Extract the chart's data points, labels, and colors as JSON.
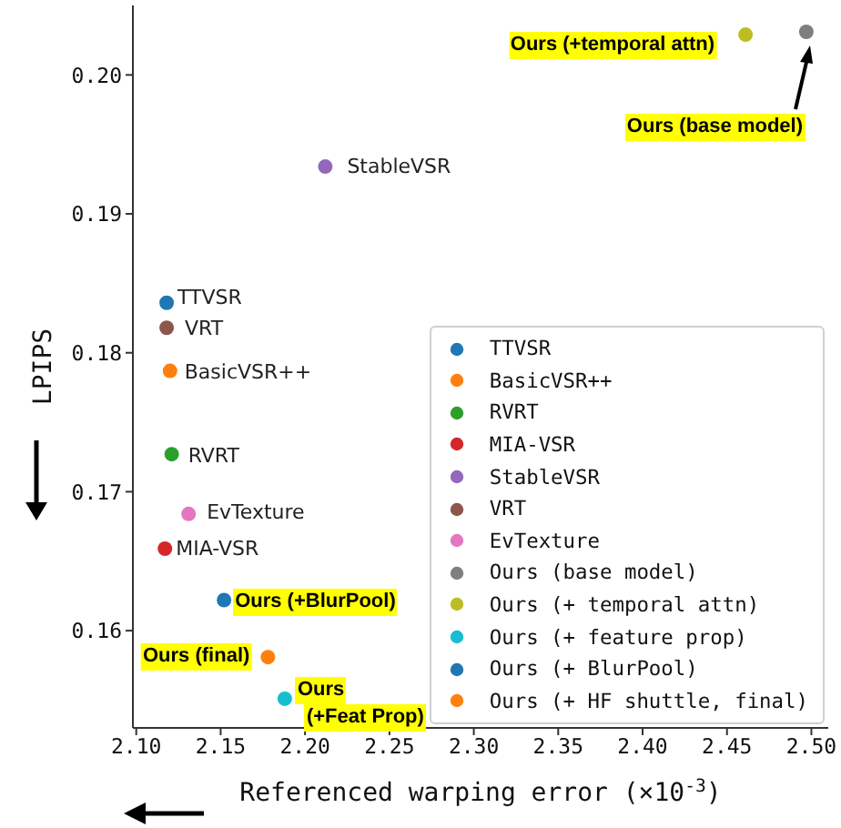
{
  "chart_data": {
    "type": "scatter",
    "xlabel": "Referenced warping error (×10$^{-3}$)",
    "ylabel": "LPIPS",
    "xlim": [
      2.098,
      2.51
    ],
    "ylim": [
      0.153,
      0.205
    ],
    "xticks": [
      {
        "value": 2.1,
        "label": "2.10"
      },
      {
        "value": 2.15,
        "label": "2.15"
      },
      {
        "value": 2.2,
        "label": "2.20"
      },
      {
        "value": 2.25,
        "label": "2.25"
      },
      {
        "value": 2.3,
        "label": "2.30"
      },
      {
        "value": 2.35,
        "label": "2.35"
      },
      {
        "value": 2.4,
        "label": "2.40"
      },
      {
        "value": 2.45,
        "label": "2.45"
      },
      {
        "value": 2.5,
        "label": "2.50"
      }
    ],
    "yticks": [
      {
        "value": 0.16,
        "label": "0.16"
      },
      {
        "value": 0.17,
        "label": "0.17"
      },
      {
        "value": 0.18,
        "label": "0.18"
      },
      {
        "value": 0.19,
        "label": "0.19"
      },
      {
        "value": 0.2,
        "label": "0.20"
      }
    ],
    "marker": "circle",
    "legend": "bottom right",
    "series": [
      {
        "name": "TTVSR",
        "color": "#1f77b4",
        "x": [
          2.118
        ],
        "values": [
          0.1836
        ]
      },
      {
        "name": "BasicVSR++",
        "color": "#ff7f0e",
        "x": [
          2.12
        ],
        "values": [
          0.1787
        ]
      },
      {
        "name": "RVRT",
        "color": "#2ca02c",
        "x": [
          2.121
        ],
        "values": [
          0.1727
        ]
      },
      {
        "name": "MIA-VSR",
        "color": "#d62728",
        "x": [
          2.117
        ],
        "values": [
          0.1659
        ]
      },
      {
        "name": "StableVSR",
        "color": "#9467bd",
        "x": [
          2.212
        ],
        "values": [
          0.1934
        ]
      },
      {
        "name": "VRT",
        "color": "#8c564b",
        "x": [
          2.118
        ],
        "values": [
          0.1818
        ]
      },
      {
        "name": "EvTexture",
        "color": "#e377c2",
        "x": [
          2.131
        ],
        "values": [
          0.1684
        ]
      },
      {
        "name": "Ours (base model)",
        "color": "#7f7f7f",
        "x": [
          2.497
        ],
        "values": [
          0.2031
        ]
      },
      {
        "name": "Ours (+ temporal attn)",
        "color": "#bcbd22",
        "x": [
          2.461
        ],
        "values": [
          0.2029
        ]
      },
      {
        "name": "Ours (+ feature prop)",
        "color": "#17becf",
        "x": [
          2.188
        ],
        "values": [
          0.1551
        ]
      },
      {
        "name": "Ours (+ BlurPool)",
        "color": "#1f77b4",
        "x": [
          2.152
        ],
        "values": [
          0.1622
        ]
      },
      {
        "name": "Ours (+ HF shuttle, final)",
        "color": "#ff7f0e",
        "x": [
          2.178
        ],
        "values": [
          0.1581
        ]
      }
    ],
    "annotations": [
      {
        "text": "TTVSR",
        "x": 2.118,
        "y": 0.1836
      },
      {
        "text": "BasicVSR++",
        "x": 2.12,
        "y": 0.1787
      },
      {
        "text": "RVRT",
        "x": 2.121,
        "y": 0.1727
      },
      {
        "text": "MIA-VSR",
        "x": 2.117,
        "y": 0.1659
      },
      {
        "text": "StableVSR",
        "x": 2.212,
        "y": 0.1934
      },
      {
        "text": "VRT",
        "x": 2.118,
        "y": 0.1818
      },
      {
        "text": "EvTexture",
        "x": 2.131,
        "y": 0.1684
      },
      "Ours (base model)",
      {
        "text": "Ours (+temporal attn)",
        "x": 2.461,
        "y": 0.2029
      },
      {
        "text": "Ours\n(+Feat Prop)",
        "x": 2.188,
        "y": 0.1551
      },
      {
        "text": "Ours (+BlurPool)",
        "x": 2.152,
        "y": 0.1622
      },
      {
        "text": "Ours (final)",
        "x": 2.178,
        "y": 0.1581
      }
    ]
  }
}
